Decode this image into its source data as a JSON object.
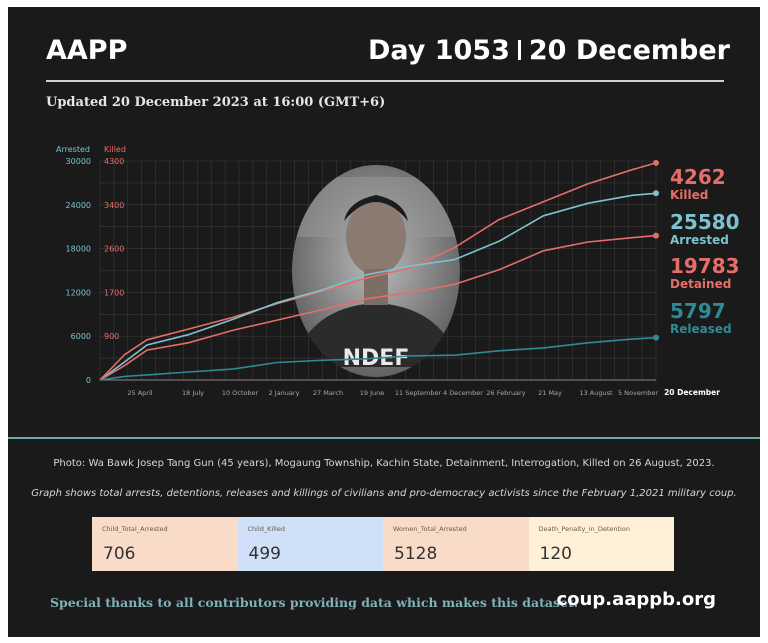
{
  "header": {
    "brand": "AAPP",
    "day": "Day 1053",
    "date": "20 December",
    "updated": "Updated 20 December 2023 at 16:00 (GMT+6)"
  },
  "chart_data": {
    "type": "line",
    "title": "",
    "y_axes": [
      {
        "label": "Arrested",
        "ticks": [
          0,
          6000,
          12000,
          18000,
          24000,
          30000
        ],
        "ylim": [
          0,
          30000
        ],
        "color": "#7cc3cf"
      },
      {
        "label": "Killed",
        "ticks": [
          0,
          900,
          1700,
          2600,
          3400,
          4300
        ],
        "color": "#e46e6a"
      }
    ],
    "x_ticks": [
      "25 April",
      "18 July",
      "10 October",
      "2 January",
      "27 March",
      "19 June",
      "11 September",
      "4 December",
      "26 February",
      "21 May",
      "13 August",
      "5 November",
      "20 December"
    ],
    "x_range": [
      "2021-02-01",
      "2023-12-20"
    ],
    "grid": true,
    "series": [
      {
        "name": "Killed",
        "color": "#e46e6a",
        "x": [
          "2021-02-01",
          "2021-03-20",
          "2021-05-01",
          "2021-07-18",
          "2021-10-10",
          "2022-01-02",
          "2022-03-27",
          "2022-06-19",
          "2022-09-11",
          "2022-12-04",
          "2023-02-26",
          "2023-05-21",
          "2023-08-13",
          "2023-11-05",
          "2023-12-20"
        ],
        "values": [
          0,
          500,
          790,
          1000,
          1230,
          1500,
          1740,
          2000,
          2200,
          2600,
          3150,
          3500,
          3850,
          4130,
          4262
        ]
      },
      {
        "name": "Arrested",
        "color": "#7cc3cf",
        "x": [
          "2021-02-01",
          "2021-03-20",
          "2021-05-01",
          "2021-07-18",
          "2021-10-10",
          "2022-01-02",
          "2022-03-27",
          "2022-06-19",
          "2022-09-11",
          "2022-12-04",
          "2023-02-26",
          "2023-05-21",
          "2023-08-13",
          "2023-11-05",
          "2023-12-20"
        ],
        "values": [
          0,
          2500,
          4800,
          6200,
          8300,
          10600,
          12300,
          14400,
          15600,
          16500,
          19000,
          22500,
          24200,
          25300,
          25580
        ]
      },
      {
        "name": "Detained",
        "color": "#e46e6a",
        "x": [
          "2021-02-01",
          "2021-03-20",
          "2021-05-01",
          "2021-07-18",
          "2021-10-10",
          "2022-01-02",
          "2022-03-27",
          "2022-06-19",
          "2022-09-11",
          "2022-12-04",
          "2023-02-26",
          "2023-05-21",
          "2023-08-13",
          "2023-11-05",
          "2023-12-20"
        ],
        "values": [
          0,
          2000,
          4100,
          5100,
          6800,
          8200,
          9600,
          11100,
          12000,
          13100,
          15100,
          17700,
          18900,
          19500,
          19783
        ]
      },
      {
        "name": "Released",
        "color": "#2f8a96",
        "x": [
          "2021-02-01",
          "2021-03-20",
          "2021-05-01",
          "2021-07-18",
          "2021-10-10",
          "2022-01-02",
          "2022-03-27",
          "2022-06-19",
          "2022-09-11",
          "2022-12-04",
          "2023-02-26",
          "2023-05-21",
          "2023-08-13",
          "2023-11-05",
          "2023-12-20"
        ],
        "values": [
          0,
          500,
          700,
          1100,
          1500,
          2400,
          2700,
          2900,
          3300,
          3400,
          4000,
          4400,
          5100,
          5600,
          5797
        ]
      }
    ],
    "end_labels": [
      {
        "value": "4262",
        "label": "Killed",
        "color": "#e46e6a"
      },
      {
        "value": "25580",
        "label": "Arrested",
        "color": "#7cc3cf"
      },
      {
        "value": "19783",
        "label": "Detained",
        "color": "#e46e6a"
      },
      {
        "value": "5797",
        "label": "Released",
        "color": "#2f8a96"
      }
    ]
  },
  "photo": {
    "shirt_text": "NDEF"
  },
  "caption": "Photo: Wa Bawk Josep Tang Gun (45 years), Mogaung Township, Kachin State, Detainment, Interrogation, Killed on 26 August, 2023.",
  "description": "Graph shows total arrests, detentions, releases and killings of civilians and pro-democracy activists since the February 1,2021 military coup.",
  "stats": [
    {
      "label": "Child_Total_Arrested",
      "value": "706",
      "bg": "#f9dcc7"
    },
    {
      "label": "Child_Killed",
      "value": "499",
      "bg": "#cfe0f8"
    },
    {
      "label": "Women_Total_Arrested",
      "value": "5128",
      "bg": "#f9dcc7"
    },
    {
      "label": "Death_Penalty_in_Detention",
      "value": "120",
      "bg": "#fdf0d6"
    }
  ],
  "footer": {
    "thanks": "Special thanks to all contributors providing data which makes this dataset.",
    "url": "coup.aappb.org"
  }
}
